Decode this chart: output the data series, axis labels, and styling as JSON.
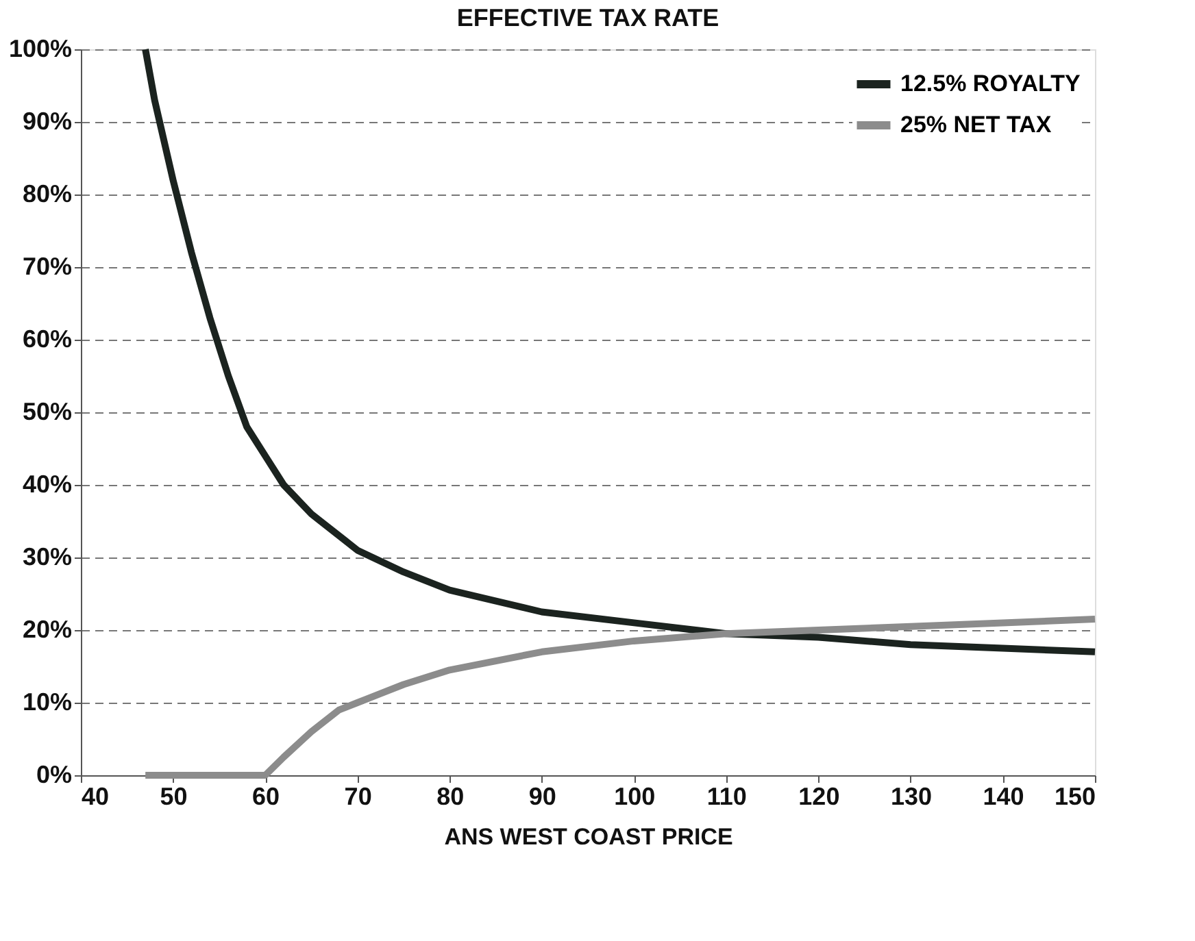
{
  "chart_data": {
    "type": "line",
    "title": "EFFECTIVE TAX RATE",
    "xlabel": "ANS WEST COAST PRICE",
    "xlim": [
      40,
      150
    ],
    "xticks": [
      40,
      50,
      60,
      70,
      80,
      90,
      100,
      110,
      120,
      130,
      140,
      150
    ],
    "ylim": [
      0,
      100
    ],
    "yticks": [
      {
        "value": 0,
        "label": "0%"
      },
      {
        "value": 10,
        "label": "10%"
      },
      {
        "value": 20,
        "label": "20%"
      },
      {
        "value": 30,
        "label": "30%"
      },
      {
        "value": 40,
        "label": "40%"
      },
      {
        "value": 50,
        "label": "50%"
      },
      {
        "value": 60,
        "label": "60%"
      },
      {
        "value": 70,
        "label": "70%"
      },
      {
        "value": 80,
        "label": "80%"
      },
      {
        "value": 90,
        "label": "90%"
      },
      {
        "value": 100,
        "label": "100%"
      }
    ],
    "grid": "y",
    "legend": "top right",
    "marker": "none",
    "line_style": "solid",
    "series": [
      {
        "name": "12.5% ROYALTY",
        "color": "#1b231f",
        "x": [
          47,
          48,
          50,
          52,
          54,
          56,
          58,
          60,
          62,
          65,
          70,
          75,
          80,
          90,
          100,
          110,
          120,
          130,
          140,
          150
        ],
        "values": [
          100,
          93,
          82,
          72,
          63,
          55,
          48,
          44,
          40,
          36,
          31,
          28,
          25.5,
          22.5,
          21,
          19.5,
          19,
          18,
          17.5,
          17
        ]
      },
      {
        "name": "25% NET TAX",
        "color": "#8c8c8c",
        "x": [
          47,
          60,
          62,
          65,
          68,
          70,
          75,
          80,
          90,
          100,
          110,
          120,
          130,
          140,
          150
        ],
        "values": [
          0,
          0,
          2.5,
          6,
          9,
          10,
          12.5,
          14.5,
          17,
          18.5,
          19.5,
          20,
          20.5,
          21,
          21.5
        ]
      }
    ]
  }
}
